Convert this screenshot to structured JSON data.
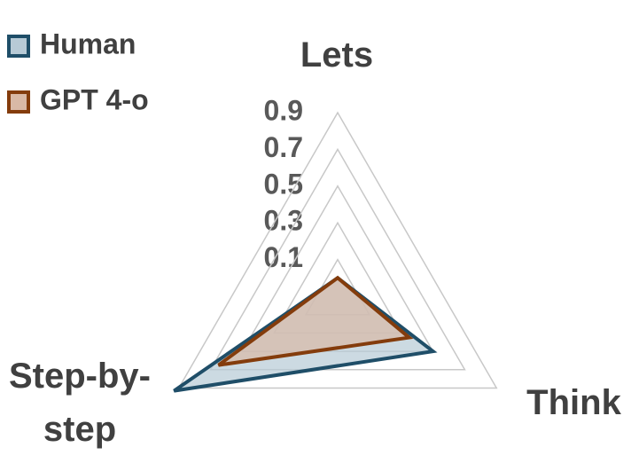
{
  "chart_data": {
    "type": "radar",
    "categories": [
      "Lets",
      "Think",
      "Step-by-step"
    ],
    "series": [
      {
        "name": "Human",
        "color": "#1f4e68",
        "fill": "#b7cad6",
        "values": [
          0.0,
          0.5,
          0.93
        ]
      },
      {
        "name": "GPT 4-o",
        "color": "#843c0c",
        "fill": "#d9b9a6",
        "values": [
          0.0,
          0.35,
          0.65
        ]
      }
    ],
    "ylim": [
      -0.1,
      0.9
    ],
    "yticks": [
      0.1,
      0.3,
      0.5,
      0.7,
      0.9
    ],
    "grid": true,
    "legend": "top-left"
  }
}
